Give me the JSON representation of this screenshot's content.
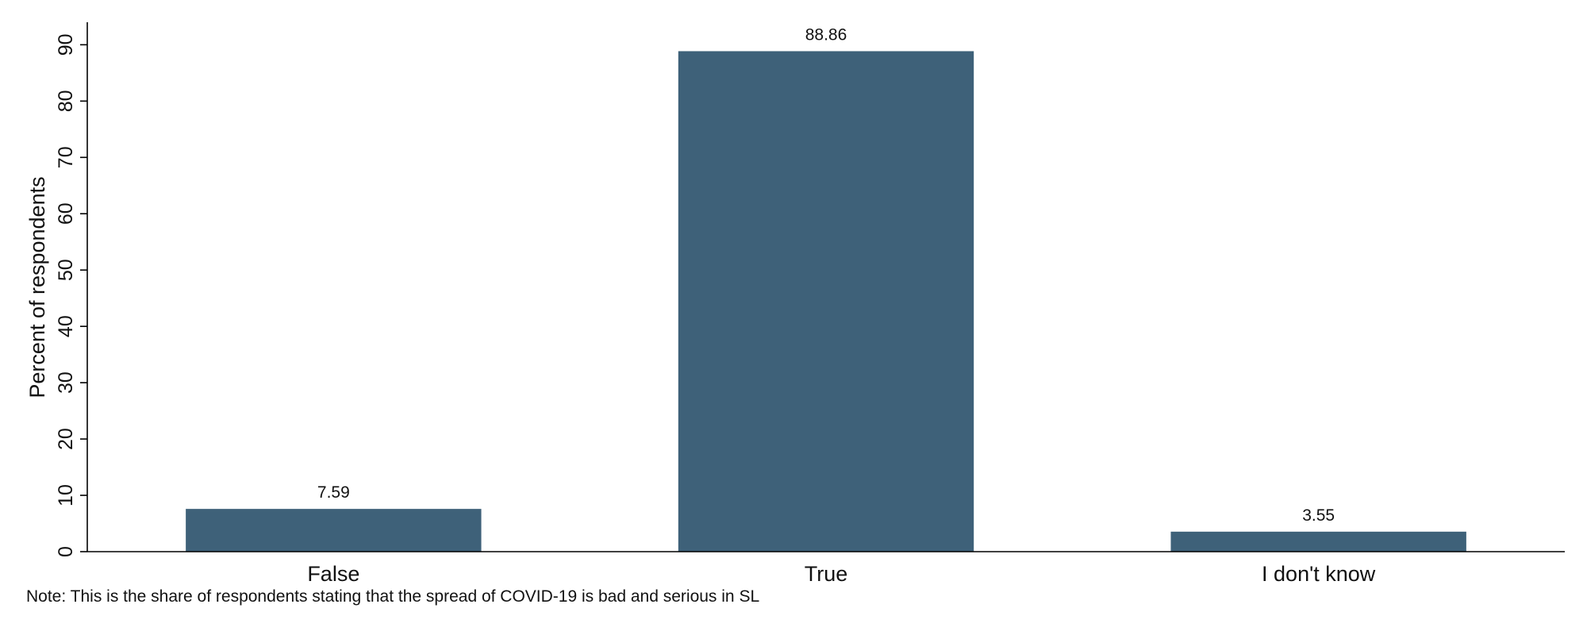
{
  "chart_data": {
    "type": "bar",
    "categories": [
      "False",
      "True",
      "I don't know"
    ],
    "values": [
      7.59,
      88.86,
      3.55
    ],
    "value_labels": [
      "7.59",
      "88.86",
      "3.55"
    ],
    "title": "",
    "xlabel": "",
    "ylabel": "Percent of respondents",
    "ylim": [
      0,
      94
    ],
    "yticks": [
      0,
      10,
      20,
      30,
      40,
      50,
      60,
      70,
      80,
      90
    ],
    "grid": false,
    "legend": "none",
    "bar_color": "#3e6179",
    "axis_color": "#000000"
  },
  "note": "Note: This is the share of respondents stating that the spread of COVID-19 is bad and serious in SL"
}
